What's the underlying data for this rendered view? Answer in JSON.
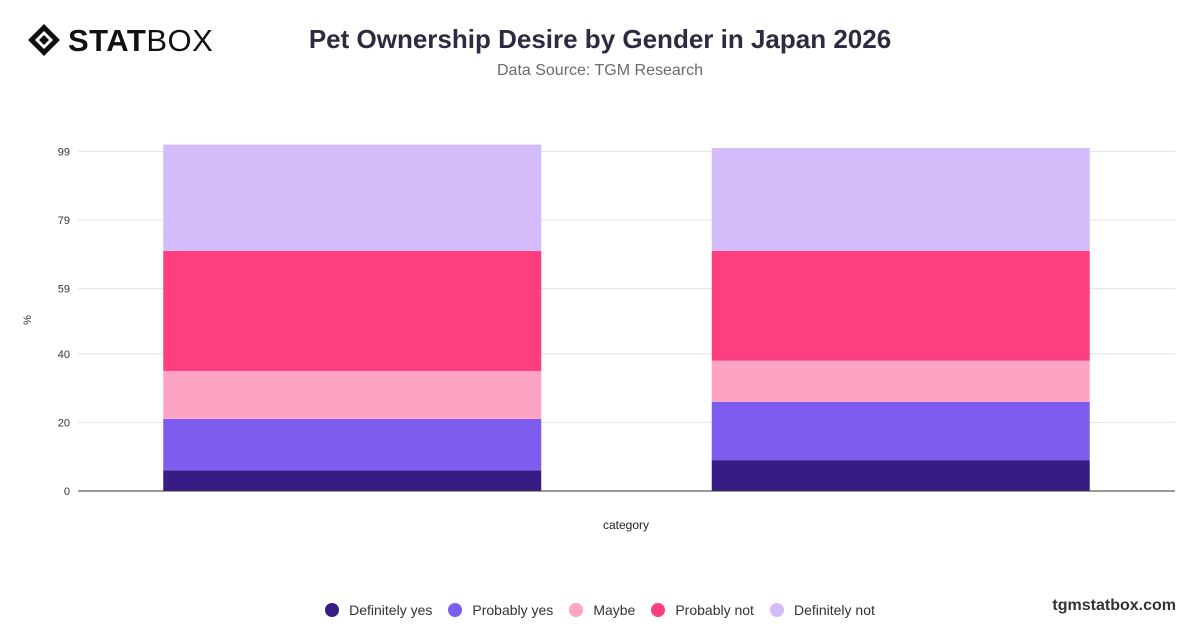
{
  "header": {
    "logo_stat": "STAT",
    "logo_box": "BOX",
    "title": "Pet Ownership Desire by Gender in Japan 2026",
    "subtitle": "Data Source: TGM Research"
  },
  "footer": {
    "brand": "tgmstatbox.com"
  },
  "chart_data": {
    "type": "bar",
    "stacked": true,
    "categories": [
      "",
      ""
    ],
    "xlabel": "category",
    "ylabel": "%",
    "ylim": [
      0,
      100
    ],
    "yticks": [
      0,
      20,
      40,
      59,
      79,
      99
    ],
    "grid": true,
    "legend": "bottom-center",
    "series": [
      {
        "name": "Definitely yes",
        "color": "#371c85",
        "values": [
          6,
          9
        ]
      },
      {
        "name": "Probably yes",
        "color": "#7d5dee",
        "values": [
          15,
          17
        ]
      },
      {
        "name": "Maybe",
        "color": "#ffa3c4",
        "values": [
          14,
          12
        ]
      },
      {
        "name": "Probably not",
        "color": "#ff3e7f",
        "values": [
          35,
          32
        ]
      },
      {
        "name": "Definitely not",
        "color": "#d4bcfb",
        "values": [
          31,
          30
        ]
      }
    ]
  }
}
